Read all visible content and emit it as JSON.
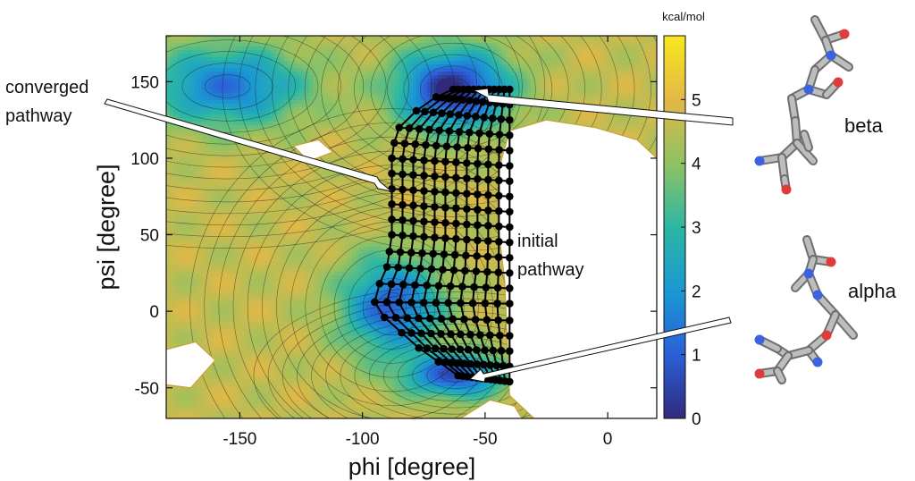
{
  "chart_data": {
    "type": "heatmap",
    "xlabel": "phi [degree]",
    "ylabel": "psi [degree]",
    "xlim": [
      -180,
      20
    ],
    "ylim": [
      -70,
      180
    ],
    "xticks": [
      -150,
      -100,
      -50,
      0
    ],
    "yticks": [
      -50,
      0,
      50,
      100,
      150
    ],
    "colorbar": {
      "unit": "kcal/mol",
      "range": [
        0,
        6
      ],
      "ticks": [
        0,
        1,
        2,
        3,
        4,
        5
      ],
      "colors": [
        "#312a7c",
        "#2b5fd9",
        "#1a98d3",
        "#2cb7a3",
        "#8fc263",
        "#e3b846",
        "#f7e81e"
      ]
    },
    "minima": [
      {
        "phi": -63,
        "psi": 145,
        "energy": 0.0
      },
      {
        "phi": -155,
        "psi": 147,
        "energy": 1.4
      },
      {
        "phi": -88,
        "psi": 3,
        "energy": 1.0
      },
      {
        "phi": -62,
        "psi": -42,
        "energy": 0.8
      }
    ],
    "series": [
      {
        "name": "initial pathway",
        "phi": [
          -40,
          -40,
          -40,
          -40,
          -40,
          -40,
          -40,
          -40,
          -40,
          -40,
          -40,
          -40,
          -40,
          -40,
          -40,
          -40,
          -40,
          -40,
          -40,
          -40
        ],
        "psi": [
          -46,
          -36,
          -26,
          -16,
          -6,
          5,
          15,
          25,
          35,
          45,
          55,
          65,
          75,
          85,
          95,
          105,
          115,
          125,
          135,
          145
        ]
      },
      {
        "name": "converged pathway",
        "phi": [
          -61,
          -69,
          -77,
          -84,
          -91,
          -95,
          -93,
          -90,
          -89,
          -88,
          -88,
          -88,
          -88,
          -88,
          -88,
          -87,
          -85,
          -78,
          -70,
          -63
        ],
        "psi": [
          -42,
          -33,
          -24,
          -14,
          -4,
          6,
          18,
          29,
          39,
          50,
          60,
          70,
          80,
          90,
          100,
          110,
          120,
          131,
          140,
          145
        ]
      }
    ],
    "annotations": [
      "converged pathway",
      "initial pathway"
    ],
    "structure_labels": [
      "beta",
      "alpha"
    ]
  },
  "text": {
    "converged_line1": "converged",
    "converged_line2": "pathway",
    "initial_line1": "initial",
    "initial_line2": "pathway",
    "beta": "beta",
    "alpha": "alpha"
  }
}
